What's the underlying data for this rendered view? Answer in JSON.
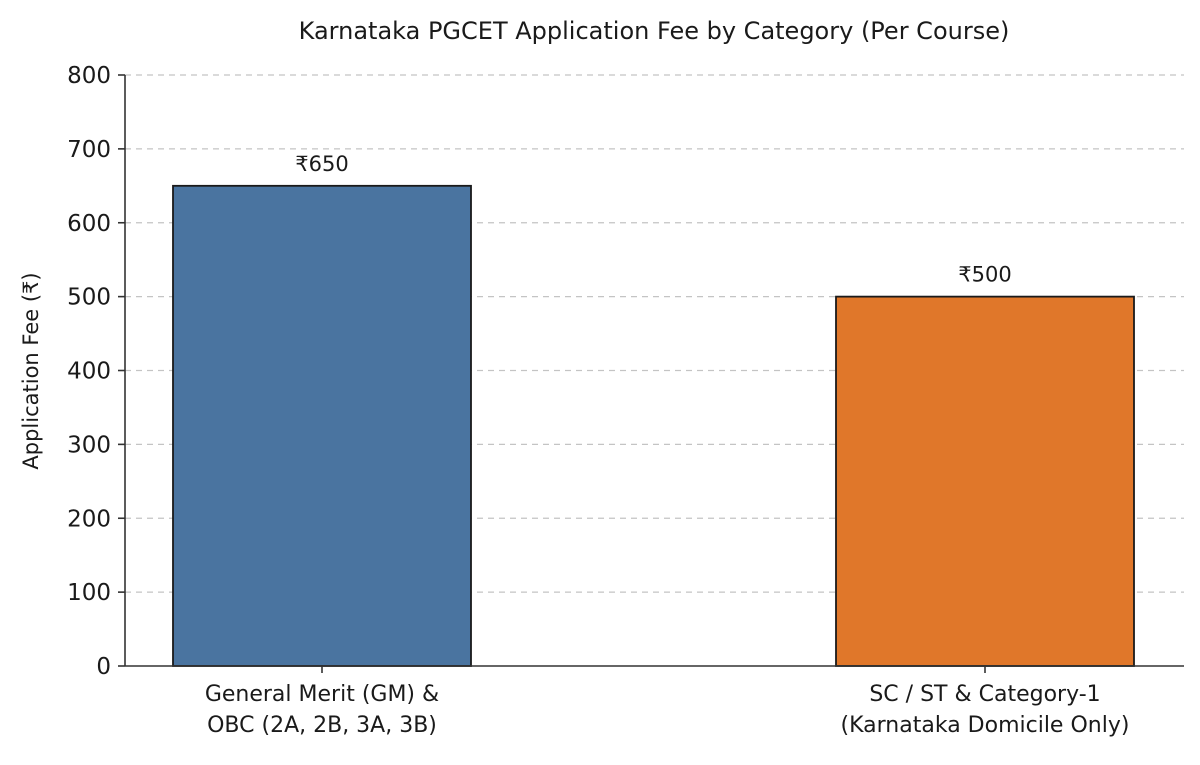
{
  "chart_data": {
    "type": "bar",
    "title": "Karnataka PGCET Application Fee by Category (Per Course)",
    "xlabel": "",
    "ylabel": "Application Fee (₹)",
    "ylim": [
      0,
      800
    ],
    "yticks": [
      0,
      100,
      200,
      300,
      400,
      500,
      600,
      700,
      800
    ],
    "grid": "horizontal dashed",
    "categories": [
      [
        "General Merit (GM) &",
        "OBC (2A, 2B, 3A, 3B)"
      ],
      [
        "SC / ST & Category-1",
        "(Karnataka Domicile Only)"
      ]
    ],
    "values": [
      650,
      500
    ],
    "value_labels": [
      "₹650",
      "₹500"
    ],
    "colors": [
      "#4a74a0",
      "#e0772a"
    ]
  }
}
